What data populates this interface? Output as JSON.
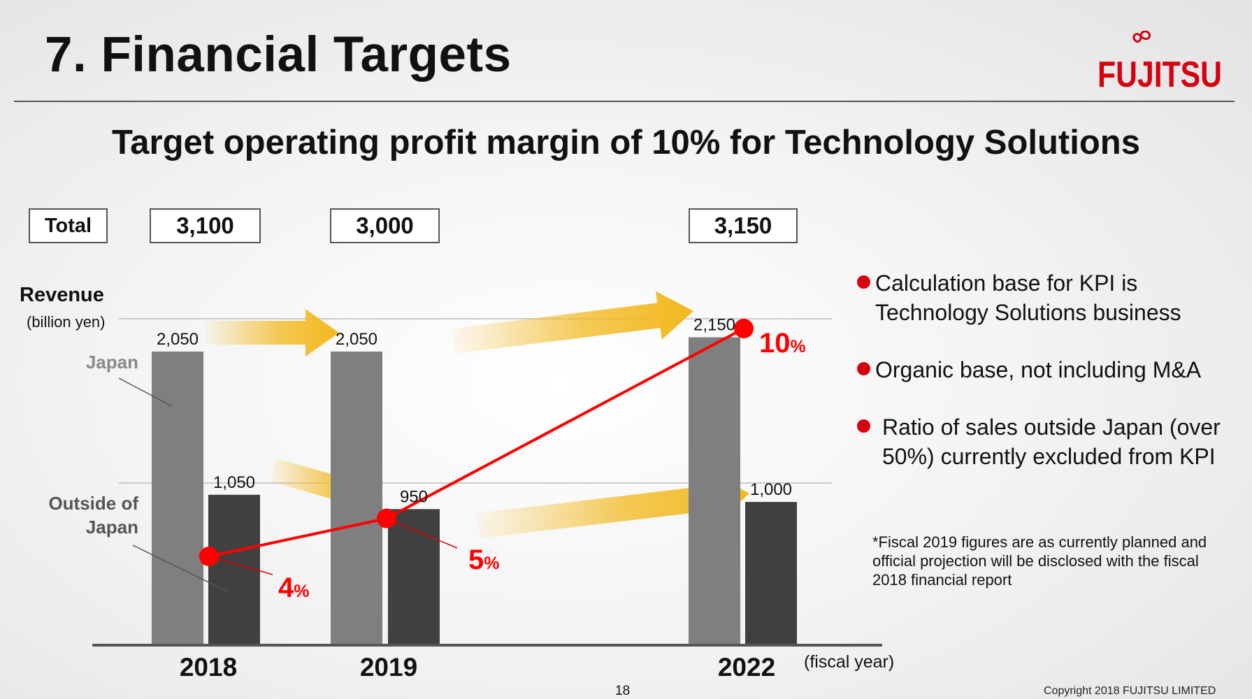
{
  "slide": {
    "title": "7. Financial Targets",
    "subtitle": "Target operating profit margin of 10% for Technology Solutions",
    "page_number": "18",
    "copyright": "Copyright 2018 FUJITSU LIMITED"
  },
  "logo": {
    "text": "FUJITSU",
    "color": "#d7000f"
  },
  "totals": {
    "label": "Total",
    "values": [
      "3,100",
      "3,000",
      "3,150"
    ]
  },
  "axis": {
    "ylabel": "Revenue",
    "yunit": "(billion yen)",
    "xunit": "(fiscal year)"
  },
  "annotations": {
    "japan": "Japan",
    "outside": "Outside of Japan"
  },
  "bullets": [
    "Calculation base for KPI is Technology Solutions business",
    "Organic base, not including M&A",
    "Ratio of sales outside Japan (over 50%) currently excluded from KPI"
  ],
  "note": "*Fiscal 2019 figures are as currently planned and official projection will be disclosed with the fiscal 2018 financial report",
  "colors": {
    "japan_bar": "#7f7f7f",
    "outside_bar": "#404040",
    "margin_line": "#ff0000",
    "arrow": "#f2b81d",
    "accent": "#d7000f"
  },
  "chart_data": {
    "type": "bar",
    "title": "Target operating profit margin of 10% for Technology Solutions",
    "xlabel": "(fiscal year)",
    "ylabel": "Revenue (billion yen)",
    "categories": [
      "2018",
      "2019",
      "2022"
    ],
    "series": [
      {
        "name": "Japan",
        "values": [
          2050,
          2050,
          2150
        ],
        "labels": [
          "2,050",
          "2,050",
          "2,150"
        ]
      },
      {
        "name": "Outside of Japan",
        "values": [
          1050,
          950,
          1000
        ],
        "labels": [
          "1,050",
          "950",
          "1,000"
        ]
      }
    ],
    "totals": [
      3100,
      3000,
      3150
    ],
    "line": {
      "name": "Operating profit margin",
      "values": [
        4,
        5,
        10
      ],
      "number_labels": [
        "4",
        "5",
        "10"
      ],
      "suffix": "%"
    },
    "legend": "none"
  }
}
